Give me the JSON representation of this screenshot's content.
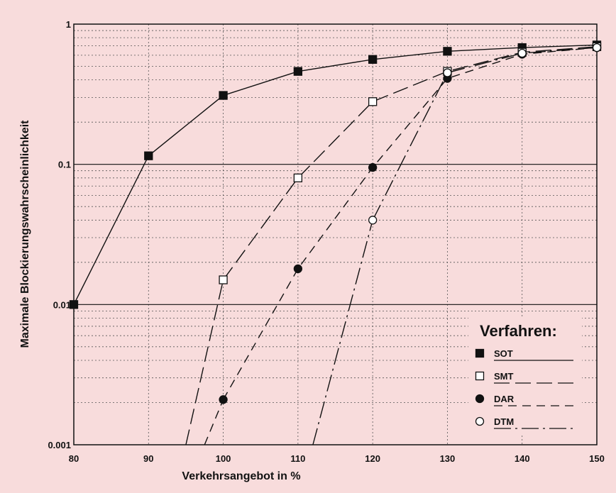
{
  "chart_data": {
    "type": "line",
    "xlabel": "Verkehrsangebot in %",
    "ylabel": "Maximale Blockierungswahrscheinlichkeit",
    "xlim": [
      80,
      150
    ],
    "ylim": [
      0.001,
      1
    ],
    "yscale": "log",
    "x_ticks": [
      "80",
      "90",
      "100",
      "110",
      "120",
      "130",
      "140",
      "150"
    ],
    "y_ticks": [
      "0.001",
      "0.01",
      "0.1",
      "1"
    ],
    "grid": true,
    "legend_position": "bottom-right",
    "legend_title": "Verfahren:",
    "series": [
      {
        "name": "SOT",
        "marker": "filled-square",
        "line_style": "solid",
        "x": [
          80,
          90,
          100,
          110,
          120,
          130,
          140,
          150
        ],
        "y": [
          0.01,
          0.115,
          0.31,
          0.46,
          0.56,
          0.64,
          0.68,
          0.71
        ]
      },
      {
        "name": "SMT",
        "marker": "open-square",
        "line_style": "long-dash",
        "x": [
          100,
          110,
          120,
          130,
          140,
          150
        ],
        "y": [
          0.015,
          0.08,
          0.28,
          0.46,
          0.63,
          0.69
        ]
      },
      {
        "name": "DAR",
        "marker": "filled-circle",
        "line_style": "dash",
        "x": [
          100,
          110,
          120,
          130,
          140,
          150
        ],
        "y": [
          0.0021,
          0.018,
          0.095,
          0.41,
          0.61,
          0.68
        ]
      },
      {
        "name": "DTM",
        "marker": "open-circle",
        "line_style": "dash-dot",
        "x": [
          120,
          130,
          140,
          150
        ],
        "y": [
          0.04,
          0.45,
          0.62,
          0.68
        ]
      }
    ],
    "steep_segments": [
      {
        "series": "SMT",
        "x": [
          95,
          100
        ],
        "y": [
          0.001,
          0.015
        ]
      },
      {
        "series": "DAR",
        "x": [
          97.5,
          100
        ],
        "y": [
          0.001,
          0.0021
        ]
      },
      {
        "series": "DTM",
        "x": [
          112,
          120
        ],
        "y": [
          0.001,
          0.04
        ]
      }
    ]
  }
}
